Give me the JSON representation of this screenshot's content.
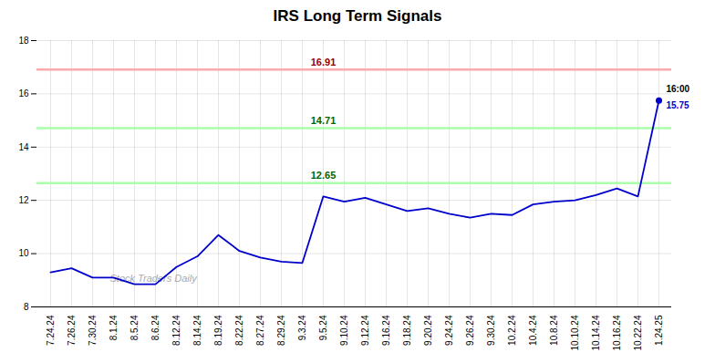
{
  "chart_data": {
    "type": "line",
    "title": "IRS Long Term Signals",
    "categories": [
      "7.24.24",
      "7.26.24",
      "7.30.24",
      "8.1.24",
      "8.5.24",
      "8.6.24",
      "8.12.24",
      "8.14.24",
      "8.19.24",
      "8.22.24",
      "8.27.24",
      "8.29.24",
      "9.3.24",
      "9.5.24",
      "9.10.24",
      "9.12.24",
      "9.16.24",
      "9.18.24",
      "9.20.24",
      "9.24.24",
      "9.26.24",
      "9.30.24",
      "10.2.24",
      "10.4.24",
      "10.8.24",
      "10.10.24",
      "10.14.24",
      "10.16.24",
      "10.22.24",
      "1.24.25"
    ],
    "values": [
      9.3,
      9.45,
      9.1,
      9.1,
      8.85,
      8.85,
      9.5,
      9.9,
      10.7,
      10.1,
      9.85,
      9.7,
      9.65,
      12.15,
      11.95,
      12.1,
      11.85,
      11.6,
      11.7,
      11.5,
      11.35,
      11.5,
      11.45,
      11.85,
      11.95,
      12.0,
      12.2,
      12.45,
      12.15,
      15.75
    ],
    "color": "#0000cc",
    "ylim": [
      8,
      18
    ],
    "yticks": [
      8,
      10,
      12,
      14,
      16,
      18
    ],
    "grid": true,
    "hlines": [
      {
        "y": 16.91,
        "label": "16.91",
        "color": "#ffaaaa",
        "label_color": "#990000"
      },
      {
        "y": 14.71,
        "label": "14.71",
        "color": "#aaffaa",
        "label_color": "#006600"
      },
      {
        "y": 12.65,
        "label": "12.65",
        "color": "#aaffaa",
        "label_color": "#006600"
      }
    ],
    "last_point": {
      "marker": "circle",
      "labels": [
        {
          "text": "16:00",
          "color": "#000000"
        },
        {
          "text": "15.75",
          "color": "#0000cc"
        }
      ]
    },
    "watermark": {
      "text": "Stock Traders Daily",
      "color": "#aaaaaa"
    }
  }
}
